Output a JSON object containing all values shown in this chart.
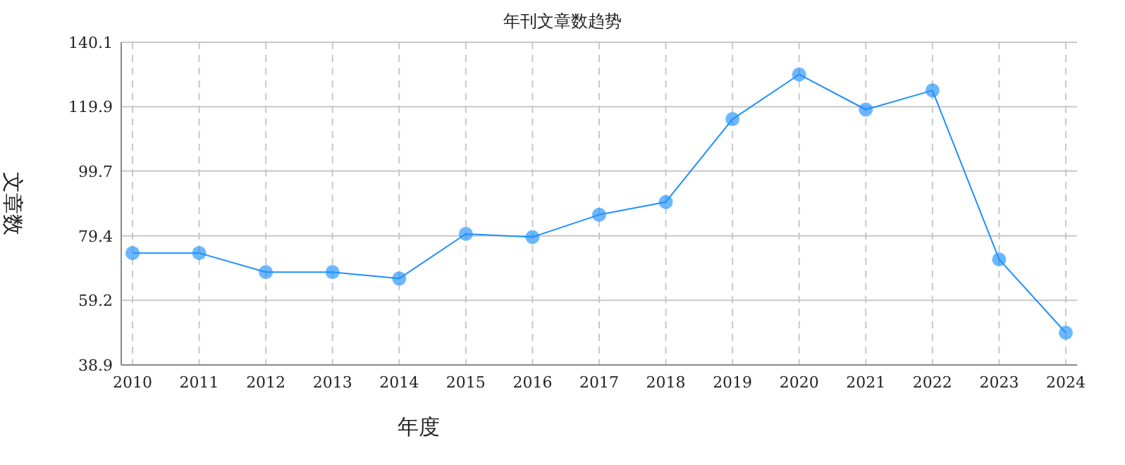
{
  "chart_data": {
    "type": "line",
    "title": "年刊文章数趋势",
    "xlabel": "年度",
    "ylabel": "文章数",
    "categories": [
      "2010",
      "2011",
      "2012",
      "2013",
      "2014",
      "2015",
      "2016",
      "2017",
      "2018",
      "2019",
      "2020",
      "2021",
      "2022",
      "2023",
      "2024"
    ],
    "series": [
      {
        "color": "#1e90ff",
        "values": [
          74,
          74,
          68,
          68,
          66,
          80,
          79,
          86,
          90,
          116,
          130,
          119,
          125,
          72,
          49
        ]
      }
    ],
    "ylim": [
      38.9,
      140.1
    ],
    "yticks": [
      38.9,
      59.2,
      79.4,
      99.7,
      119.9,
      140.1
    ],
    "grid": true,
    "marker": "circle",
    "line_style": "solid"
  }
}
